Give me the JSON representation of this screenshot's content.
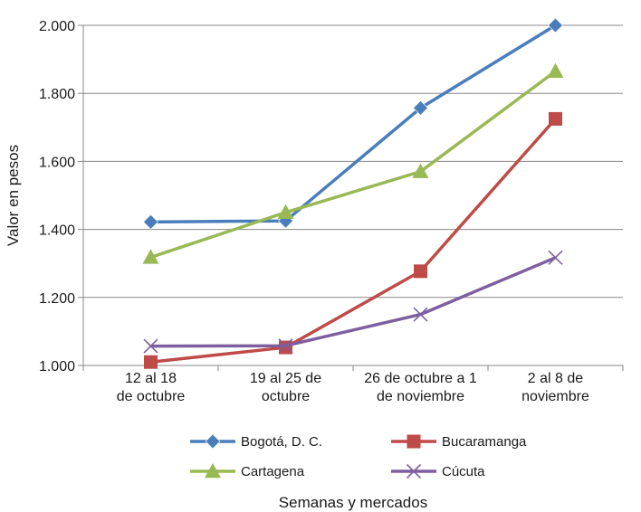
{
  "chart_data": {
    "type": "line",
    "categories": [
      [
        "12 al 18",
        "de octubre"
      ],
      [
        "19 al 25 de",
        "octubre"
      ],
      [
        "26 de octubre a 1",
        "de noviembre"
      ],
      [
        "2 al 8 de",
        "noviembre"
      ]
    ],
    "ylabel": "Valor en pesos",
    "xlabel": "Semanas y mercados",
    "ylim": [
      1000,
      2000
    ],
    "yticks": [
      1000,
      1200,
      1400,
      1600,
      1800,
      2000
    ],
    "ytick_labels": [
      "1.000",
      "1.200",
      "1.400",
      "1.600",
      "1.800",
      "2.000"
    ],
    "grid": "horizontal",
    "legend_position": "bottom",
    "series": [
      {
        "name": "Bogotá, D. C.",
        "color": "#4a7ebb",
        "marker": "diamond",
        "values": [
          1422,
          1425,
          1757,
          2000
        ]
      },
      {
        "name": "Bucaramanga",
        "color": "#be4b48",
        "marker": "square",
        "values": [
          1010,
          1053,
          1277,
          1725
        ]
      },
      {
        "name": "Cartagena",
        "color": "#98b954",
        "marker": "triangle",
        "values": [
          1318,
          1450,
          1570,
          1865
        ]
      },
      {
        "name": "Cúcuta",
        "color": "#7d5fa0",
        "marker": "x",
        "values": [
          1057,
          1058,
          1150,
          1317
        ]
      }
    ]
  }
}
